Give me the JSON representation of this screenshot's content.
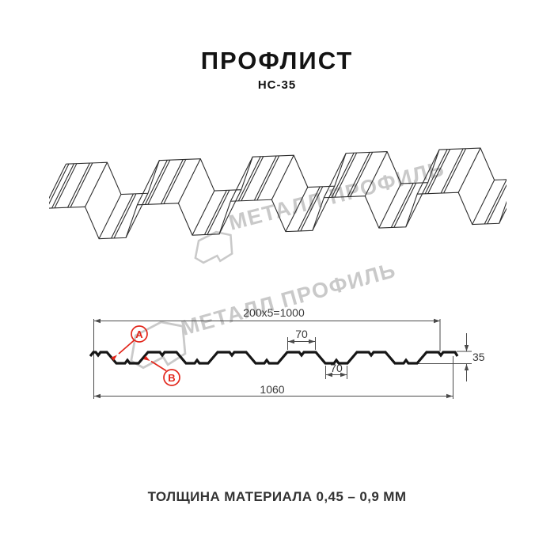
{
  "header": {
    "title": "ПРОФЛИСТ",
    "subtitle": "НС-35"
  },
  "watermark": {
    "text": "МЕТАЛЛ ПРОФИЛЬ",
    "color": "#c9c9c9"
  },
  "cross_section": {
    "dimensions": {
      "top_total": "200x5=1000",
      "crest_width": "70",
      "valley_width": "70",
      "overall_width": "1060",
      "profile_height": "35"
    },
    "callouts": {
      "a": "A",
      "b": "B"
    },
    "accent_color": "#e2261b",
    "line_color": "#2d2d2d"
  },
  "footer": {
    "material_thickness": "ТОЛЩИНА МАТЕРИАЛА 0,45 – 0,9 ММ"
  }
}
